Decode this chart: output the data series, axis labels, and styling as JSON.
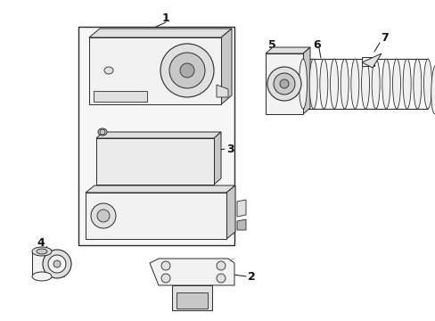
{
  "background_color": "#ffffff",
  "line_color": "#2a2a2a",
  "fill_light": "#f2f2f2",
  "fill_mid": "#e0e0e0",
  "fill_dark": "#c8c8c8",
  "label_color": "#111111",
  "label_fontsize": 9,
  "fig_width": 4.89,
  "fig_height": 3.6,
  "dpi": 100
}
